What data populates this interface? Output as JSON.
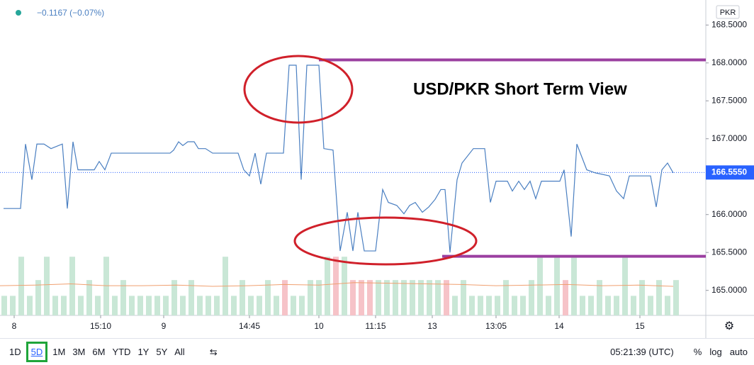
{
  "chart_data": {
    "type": "line",
    "title": "USD/PKR Short Term View",
    "legend_text": "−0.1167 (−0.07%)",
    "currency": "PKR",
    "xlim": [
      0,
      996
    ],
    "xticks": [
      {
        "value": 20,
        "label": "8"
      },
      {
        "value": 142,
        "label": "15:10"
      },
      {
        "value": 231,
        "label": "9"
      },
      {
        "value": 352,
        "label": "14:45"
      },
      {
        "value": 450,
        "label": "10"
      },
      {
        "value": 530,
        "label": "11:15"
      },
      {
        "value": 610,
        "label": "13"
      },
      {
        "value": 700,
        "label": "13:05"
      },
      {
        "value": 789,
        "label": "14"
      },
      {
        "value": 903,
        "label": "15"
      }
    ],
    "ylim": [
      164.67,
      168.83
    ],
    "yticks": [
      {
        "value": 165,
        "label": "165.0000"
      },
      {
        "value": 165.5,
        "label": "165.5000"
      },
      {
        "value": 166,
        "label": "166.0000"
      },
      {
        "value": 167,
        "label": "167.0000"
      },
      {
        "value": 167.5,
        "label": "167.5000"
      },
      {
        "value": 168,
        "label": "168.0000"
      },
      {
        "value": 168.5,
        "label": "168.5000"
      }
    ],
    "grid": false,
    "series": [
      {
        "color": "#4a7fc1",
        "x": [
          5,
          29,
          36,
          45,
          52,
          62,
          72,
          80,
          88,
          95,
          103,
          110,
          118,
          133,
          140,
          148,
          157,
          240,
          245,
          252,
          258,
          265,
          274,
          280,
          290,
          300,
          336,
          344,
          352,
          360,
          368,
          376,
          400,
          408,
          418,
          425,
          433,
          450,
          457,
          470,
          480,
          490,
          498,
          505,
          514,
          530,
          540,
          548,
          560,
          570,
          578,
          586,
          596,
          605,
          614,
          622,
          628,
          635,
          645,
          652,
          668,
          684,
          692,
          700,
          716,
          723,
          732,
          740,
          748,
          756,
          764,
          790,
          796,
          806,
          814,
          828,
          840,
          860,
          870,
          880,
          888,
          918,
          926,
          934,
          942,
          950
        ],
        "values": [
          166.08,
          166.08,
          166.93,
          166.46,
          166.93,
          166.93,
          166.87,
          166.9,
          166.93,
          166.08,
          166.96,
          166.59,
          166.59,
          166.59,
          166.7,
          166.59,
          166.81,
          166.81,
          166.85,
          166.96,
          166.91,
          166.96,
          166.96,
          166.87,
          166.87,
          166.81,
          166.81,
          166.59,
          166.51,
          166.81,
          166.4,
          166.81,
          166.81,
          167.97,
          167.97,
          166.46,
          167.97,
          167.97,
          166.87,
          166.85,
          165.52,
          166.03,
          165.52,
          166.03,
          165.52,
          165.52,
          166.33,
          166.16,
          166.12,
          166.01,
          166.12,
          166.16,
          166.03,
          166.1,
          166.2,
          166.33,
          166.33,
          165.5,
          166.46,
          166.68,
          166.87,
          166.87,
          166.16,
          166.44,
          166.44,
          166.31,
          166.44,
          166.33,
          166.44,
          166.21,
          166.44,
          166.44,
          166.59,
          165.71,
          166.93,
          166.59,
          166.55,
          166.51,
          166.31,
          166.21,
          166.51,
          166.51,
          166.1,
          166.59,
          166.68,
          166.55
        ]
      }
    ],
    "last_price": {
      "value": 166.555,
      "label": "166.5550",
      "color": "#2962ff"
    },
    "levels": [
      {
        "value": 168.04,
        "x_start": 450,
        "color": "#9b3fa0"
      },
      {
        "value": 165.45,
        "x_start": 624,
        "color": "#9b3fa0"
      }
    ],
    "y2lim": [
      0,
      500
    ],
    "volume": {
      "axis": "y2",
      "x": [
        6,
        18,
        30,
        42,
        54,
        66,
        78,
        90,
        102,
        114,
        126,
        138,
        150,
        162,
        174,
        186,
        198,
        210,
        222,
        234,
        246,
        258,
        270,
        282,
        294,
        306,
        318,
        330,
        342,
        354,
        366,
        378,
        390,
        402,
        414,
        426,
        438,
        450,
        462,
        474,
        486,
        498,
        510,
        522,
        534,
        546,
        558,
        570,
        582,
        594,
        606,
        618,
        630,
        642,
        654,
        666,
        678,
        690,
        702,
        714,
        726,
        738,
        750,
        762,
        774,
        786,
        798,
        810,
        822,
        834,
        846,
        858,
        870,
        882,
        894,
        906,
        918,
        930,
        942,
        954
      ],
      "values": [
        31,
        31,
        93,
        31,
        56,
        93,
        31,
        31,
        93,
        31,
        56,
        31,
        93,
        31,
        56,
        31,
        31,
        31,
        31,
        31,
        56,
        31,
        56,
        31,
        31,
        31,
        93,
        31,
        56,
        31,
        31,
        56,
        31,
        56,
        31,
        31,
        56,
        56,
        93,
        93,
        93,
        56,
        56,
        56,
        56,
        56,
        56,
        56,
        56,
        56,
        56,
        56,
        56,
        31,
        56,
        31,
        31,
        31,
        31,
        56,
        31,
        31,
        56,
        93,
        31,
        93,
        56,
        93,
        31,
        31,
        56,
        31,
        31,
        93,
        31,
        56,
        31,
        56,
        31,
        56
      ],
      "colors": [
        "#c9e7d6",
        "#c9e7d6",
        "#c9e7d6",
        "#c9e7d6",
        "#c9e7d6",
        "#c9e7d6",
        "#c9e7d6",
        "#c9e7d6",
        "#c9e7d6",
        "#c9e7d6",
        "#c9e7d6",
        "#c9e7d6",
        "#c9e7d6",
        "#c9e7d6",
        "#c9e7d6",
        "#c9e7d6",
        "#c9e7d6",
        "#c9e7d6",
        "#c9e7d6",
        "#c9e7d6",
        "#c9e7d6",
        "#c9e7d6",
        "#c9e7d6",
        "#c9e7d6",
        "#c9e7d6",
        "#c9e7d6",
        "#c9e7d6",
        "#c9e7d6",
        "#c9e7d6",
        "#c9e7d6",
        "#c9e7d6",
        "#c9e7d6",
        "#c9e7d6",
        "#f6c3c8",
        "#c9e7d6",
        "#c9e7d6",
        "#c9e7d6",
        "#c9e7d6",
        "#c9e7d6",
        "#f6c3c8",
        "#c9e7d6",
        "#f6c3c8",
        "#f6c3c8",
        "#f6c3c8",
        "#c9e7d6",
        "#c9e7d6",
        "#c9e7d6",
        "#c9e7d6",
        "#c9e7d6",
        "#c9e7d6",
        "#c9e7d6",
        "#c9e7d6",
        "#f6c3c8",
        "#c9e7d6",
        "#c9e7d6",
        "#c9e7d6",
        "#c9e7d6",
        "#c9e7d6",
        "#c9e7d6",
        "#c9e7d6",
        "#c9e7d6",
        "#c9e7d6",
        "#c9e7d6",
        "#c9e7d6",
        "#c9e7d6",
        "#c9e7d6",
        "#f6c3c8",
        "#c9e7d6",
        "#c9e7d6",
        "#c9e7d6",
        "#c9e7d6",
        "#c9e7d6",
        "#c9e7d6",
        "#c9e7d6",
        "#c9e7d6",
        "#c9e7d6",
        "#c9e7d6",
        "#c9e7d6",
        "#c9e7d6",
        "#c9e7d6"
      ]
    },
    "volume_ma": {
      "axis": "y2",
      "color": "#f0a070",
      "x": [
        0,
        50,
        100,
        150,
        200,
        250,
        300,
        350,
        400,
        450,
        500,
        550,
        600,
        650,
        700,
        750,
        800,
        850,
        900,
        950
      ],
      "values": [
        47,
        48,
        50,
        47,
        47,
        48,
        46,
        47,
        49,
        48,
        52,
        51,
        50,
        49,
        47,
        48,
        49,
        47,
        48,
        46
      ]
    }
  },
  "toolbar": {
    "ranges": [
      "1D",
      "5D",
      "1M",
      "3M",
      "6M",
      "YTD",
      "1Y",
      "5Y",
      "All"
    ],
    "selected": "5D",
    "clock": "05:21:39 (UTC)",
    "options": [
      "%",
      "log",
      "auto"
    ]
  }
}
